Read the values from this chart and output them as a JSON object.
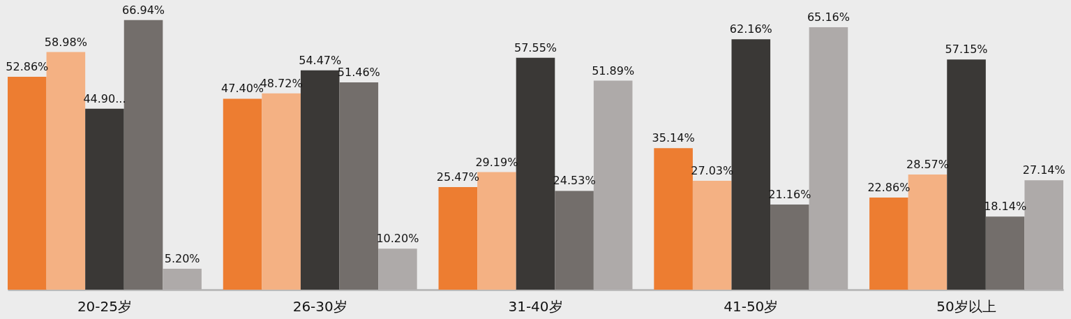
{
  "chart_data": {
    "type": "bar",
    "categories": [
      "20-25岁",
      "26-30岁",
      "31-40岁",
      "41-50岁",
      "50岁以上"
    ],
    "series": [
      {
        "color": "#ed7d31",
        "values": [
          52.86,
          47.4,
          25.47,
          35.14,
          22.86
        ],
        "value_labels": [
          "52.86%",
          "47.40%",
          "25.47%",
          "35.14%",
          "22.86%"
        ]
      },
      {
        "color": "#f4b183",
        "values": [
          58.98,
          48.72,
          29.19,
          27.03,
          28.57
        ],
        "value_labels": [
          "58.98%",
          "48.72%",
          "29.19%",
          "27.03%",
          "28.57%"
        ]
      },
      {
        "color": "#3a3836",
        "values": [
          44.9,
          54.47,
          57.55,
          62.16,
          57.15
        ],
        "value_labels": [
          "44.90...",
          "54.47%",
          "57.55%",
          "62.16%",
          "57.15%"
        ]
      },
      {
        "color": "#736e6b",
        "values": [
          66.94,
          51.46,
          24.53,
          21.16,
          18.14
        ],
        "value_labels": [
          "66.94%",
          "51.46%",
          "24.53%",
          "21.16%",
          "18.14%"
        ]
      },
      {
        "color": "#aeaaa9",
        "values": [
          5.2,
          10.2,
          51.89,
          65.16,
          27.14
        ],
        "value_labels": [
          "5.20%",
          "10.20%",
          "51.89%",
          "65.16%",
          "27.14%"
        ]
      }
    ],
    "grid": false
  }
}
